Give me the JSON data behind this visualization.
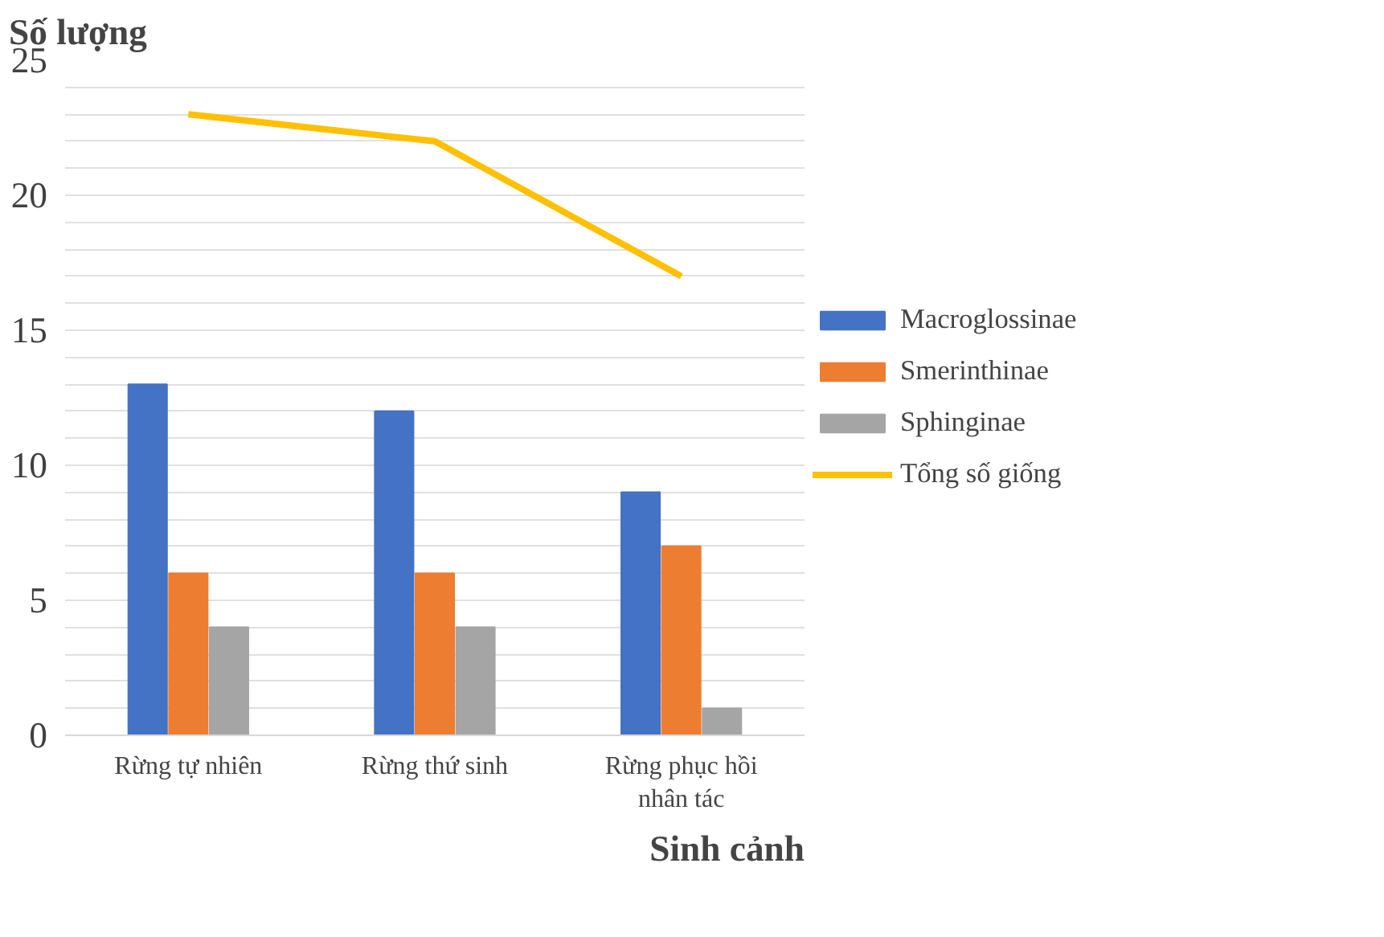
{
  "chart_data": {
    "type": "bar",
    "ylabel": "Số lượng",
    "xlabel": "Sinh cảnh",
    "categories": [
      "Rừng tự nhiên",
      "Rừng thứ sinh",
      "Rừng phục hồi nhân tác"
    ],
    "series": [
      {
        "name": "Macroglossinae",
        "color": "#4472c4",
        "values": [
          13,
          12,
          9
        ]
      },
      {
        "name": "Smerinthinae",
        "color": "#ed7d31",
        "values": [
          6,
          6,
          7
        ]
      },
      {
        "name": "Sphinginae",
        "color": "#a5a5a5",
        "values": [
          4,
          4,
          1
        ]
      },
      {
        "name": "Tổng số giống",
        "type": "line",
        "color": "#ffc000",
        "values": [
          23,
          22,
          17
        ]
      }
    ],
    "ylim": [
      0,
      25
    ],
    "yticks": [
      0,
      {
        "value": 1,
        "label": null
      },
      {
        "value": 2,
        "label": null
      },
      {
        "value": 3,
        "label": null
      },
      {
        "value": 4,
        "label": null
      },
      5,
      {
        "value": 6,
        "label": null
      },
      {
        "value": 7,
        "label": null
      },
      {
        "value": 8,
        "label": null
      },
      {
        "value": 9,
        "label": null
      },
      10,
      {
        "value": 11,
        "label": null
      },
      {
        "value": 12,
        "label": null
      },
      {
        "value": 13,
        "label": null
      },
      {
        "value": 14,
        "label": null
      },
      15,
      {
        "value": 16,
        "label": null
      },
      {
        "value": 17,
        "label": null
      },
      {
        "value": 18,
        "label": null
      },
      {
        "value": 19,
        "label": null
      },
      20,
      {
        "value": 21,
        "label": null
      },
      {
        "value": 22,
        "label": null
      },
      {
        "value": 23,
        "label": null
      },
      {
        "value": 24,
        "label": null
      },
      25
    ],
    "grid": "y",
    "legend": "right",
    "line_style": "solid",
    "marker": "none"
  }
}
